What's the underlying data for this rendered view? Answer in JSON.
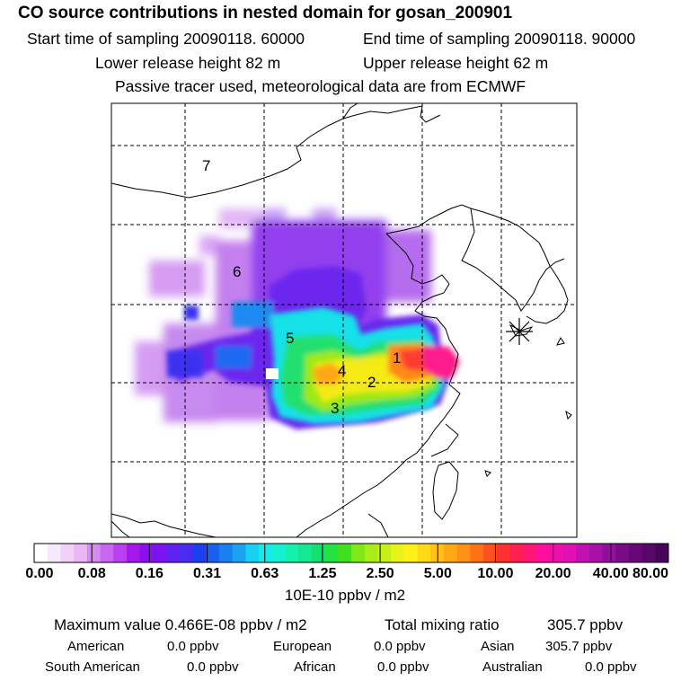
{
  "header": {
    "title": "CO  source contributions in nested domain for gosan_200901",
    "start_time": "Start time of sampling 20090118. 60000",
    "end_time": "End time of sampling 20090118. 90000",
    "lower_release": "Lower release height   82 m",
    "upper_release": "Upper release height   62 m",
    "tracer_note": "Passive tracer used, meteorological data are from ECMWF"
  },
  "map": {
    "region_labels": [
      "1",
      "2",
      "3",
      "4",
      "5",
      "6",
      "7"
    ],
    "receptor_marker": "star-icon"
  },
  "colorbar": {
    "tick_labels": [
      "0.00",
      "0.08",
      "0.16",
      "0.31",
      "0.63",
      "1.25",
      "2.50",
      "5.00",
      "10.00",
      "20.00",
      "40.00",
      "80.00"
    ],
    "unit_label": "10E-10 ppbv / m2",
    "colors": [
      "#ffffff",
      "#f8e8fb",
      "#f2d0f8",
      "#ebb6f5",
      "#d58cf0",
      "#c766ee",
      "#b840ee",
      "#a418ee",
      "#8c10ee",
      "#7a14ee",
      "#6020ee",
      "#4a2cf0",
      "#1a40f0",
      "#1a60f0",
      "#1a80f0",
      "#1aa4f0",
      "#18d0f0",
      "#14ecec",
      "#14f0d0",
      "#14f0b0",
      "#14e890",
      "#14e070",
      "#24e040",
      "#40e020",
      "#80e818",
      "#a8ec18",
      "#c8f018",
      "#e8f418",
      "#fff018",
      "#ffd818",
      "#ffc018",
      "#ffa818",
      "#ff9018",
      "#ff7018",
      "#ff5020",
      "#ff3030",
      "#ff2050",
      "#ff1478",
      "#ff109c",
      "#ee10a8",
      "#e010b4",
      "#c010b0",
      "#a810a8",
      "#90109c",
      "#780c88",
      "#680878",
      "#580668",
      "#480458"
    ]
  },
  "summary": {
    "max_label": "Maximum value  0.466E-08 ppbv / m2",
    "total_label": "Total mixing ratio",
    "total_value": "305.7 ppbv",
    "regions": [
      {
        "name": "American",
        "value": "0.0 ppbv"
      },
      {
        "name": "European",
        "value": "0.0 ppbv"
      },
      {
        "name": "Asian",
        "value": "305.7 ppbv"
      },
      {
        "name": "South American",
        "value": "0.0 ppbv"
      },
      {
        "name": "African",
        "value": "0.0 ppbv"
      },
      {
        "name": "Australian",
        "value": "0.0 ppbv"
      }
    ]
  }
}
